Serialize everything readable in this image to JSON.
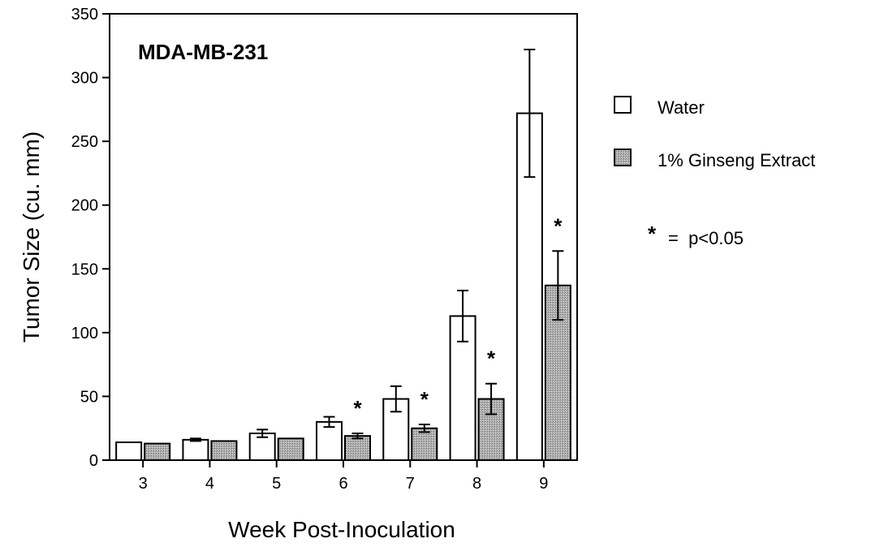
{
  "chart_data": {
    "type": "bar",
    "title": "MDA-MB-231",
    "xlabel": "Week Post-Inoculation",
    "ylabel": "Tumor Size (cu. mm)",
    "ylim": [
      0,
      350
    ],
    "yticks": [
      "0",
      "50",
      "100",
      "150",
      "200",
      "250",
      "300",
      "350"
    ],
    "categories": [
      "3",
      "4",
      "5",
      "6",
      "7",
      "8",
      "9"
    ],
    "series": [
      {
        "name": "Water",
        "fill": "#ffffff",
        "values": [
          14,
          16,
          21,
          30,
          48,
          113,
          272
        ],
        "errors": [
          0,
          1,
          3,
          4,
          10,
          20,
          50
        ]
      },
      {
        "name": "1% Ginseng Extract",
        "fill": "#a9a9a9",
        "values": [
          13,
          15,
          17,
          19,
          25,
          48,
          137
        ],
        "errors": [
          0,
          0,
          0,
          2,
          3,
          12,
          27
        ]
      }
    ],
    "significant": [
      false,
      false,
      false,
      true,
      true,
      true,
      true
    ],
    "significance_marker": "*",
    "legend_note": "= p<0.05",
    "legend_position": "right",
    "grid": false
  }
}
